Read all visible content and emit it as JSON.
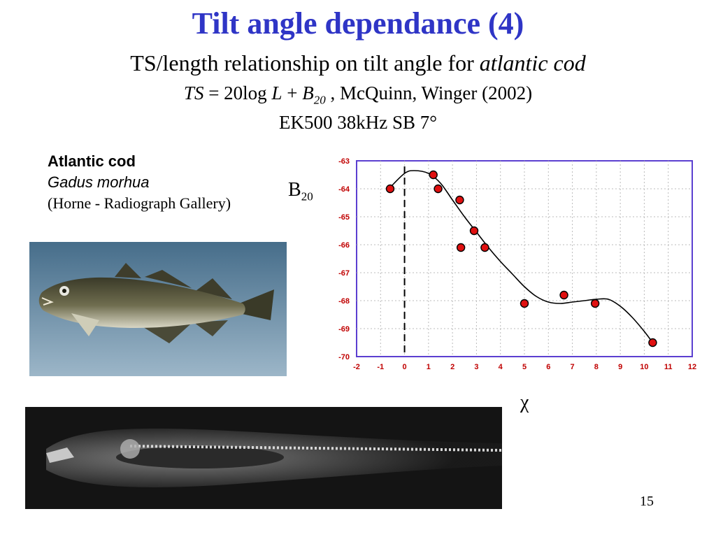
{
  "slide": {
    "title": "Tilt angle dependance (4)",
    "subtitle_plain": "TS/length relationship on tilt angle for ",
    "subtitle_italic": "atlantic cod",
    "formula": {
      "ts": "TS",
      "eq": " = 20log ",
      "L": "L",
      "plus": " + ",
      "B": "B",
      "sub": "20",
      "citation": " , McQuinn, Winger (2002)"
    },
    "device": "EK500 38kHz SB 7°",
    "species_common": "Atlantic cod",
    "species_latin": "Gadus morhua",
    "image_credit": "(Horne - Radiograph Gallery)",
    "y_label_main": "B",
    "y_label_sub": "20",
    "x_label": "χ",
    "page_number": "15"
  },
  "colors": {
    "title": "#2f35c6",
    "axis_labels": "#c00000",
    "frame": "#5b3fd0",
    "points": "#e01010"
  },
  "chart_data": {
    "type": "scatter",
    "xlim": [
      -2,
      12
    ],
    "ylim": [
      -70,
      -63
    ],
    "x_ticks": [
      -2,
      -1,
      0,
      1,
      2,
      3,
      4,
      5,
      6,
      7,
      8,
      9,
      10,
      11,
      12
    ],
    "y_ticks": [
      -63,
      -64,
      -65,
      -66,
      -67,
      -68,
      -69,
      -70
    ],
    "grid": true,
    "vline_x": 0,
    "series": [
      {
        "points": [
          [
            -0.6,
            -64.0
          ],
          [
            1.2,
            -63.5
          ],
          [
            1.4,
            -64.0
          ],
          [
            2.3,
            -64.4
          ],
          [
            2.35,
            -66.1
          ],
          [
            2.9,
            -65.5
          ],
          [
            3.35,
            -66.1
          ],
          [
            5.0,
            -68.1
          ],
          [
            6.65,
            -67.8
          ],
          [
            7.95,
            -68.1
          ],
          [
            10.35,
            -69.5
          ]
        ]
      }
    ],
    "fit_curve": [
      [
        -0.6,
        -63.95
      ],
      [
        0.0,
        -63.45
      ],
      [
        0.4,
        -63.35
      ],
      [
        1.0,
        -63.45
      ],
      [
        1.5,
        -63.8
      ],
      [
        2.0,
        -64.4
      ],
      [
        2.5,
        -65.0
      ],
      [
        3.0,
        -65.55
      ],
      [
        3.5,
        -66.1
      ],
      [
        4.0,
        -66.6
      ],
      [
        4.5,
        -67.05
      ],
      [
        5.0,
        -67.5
      ],
      [
        5.5,
        -67.85
      ],
      [
        6.0,
        -68.05
      ],
      [
        6.5,
        -68.1
      ],
      [
        7.0,
        -68.05
      ],
      [
        7.5,
        -68.0
      ],
      [
        8.0,
        -67.95
      ],
      [
        8.5,
        -67.95
      ],
      [
        9.0,
        -68.2
      ],
      [
        9.5,
        -68.6
      ],
      [
        10.0,
        -69.1
      ],
      [
        10.35,
        -69.5
      ]
    ]
  }
}
